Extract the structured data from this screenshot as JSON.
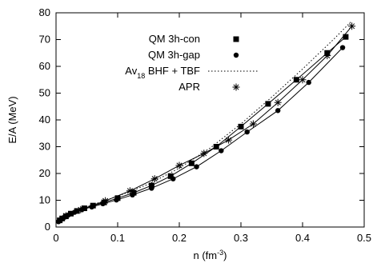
{
  "chart_data": {
    "type": "line",
    "title": "",
    "xlabel": "n (fm",
    "xlabel_sup": "-3",
    "xlabel_end": ")",
    "ylabel": "E/A (MeV)",
    "xlim": [
      0,
      0.5
    ],
    "ylim": [
      0,
      80
    ],
    "xticks": [
      0,
      0.1,
      0.2,
      0.3,
      0.4,
      0.5
    ],
    "xtick_labels": [
      "0",
      "0.1",
      "0.2",
      "0.3",
      "0.4",
      "0.5"
    ],
    "yticks": [
      0,
      10,
      20,
      30,
      40,
      50,
      60,
      70,
      80
    ],
    "ytick_labels": [
      "0",
      "10",
      "20",
      "30",
      "40",
      "50",
      "60",
      "70",
      "80"
    ],
    "grid": false,
    "legend_position": "top-left",
    "series": [
      {
        "name": "QM 3h-con",
        "marker": "square",
        "line": "solid",
        "x": [
          0.006,
          0.01,
          0.016,
          0.024,
          0.034,
          0.046,
          0.06,
          0.078,
          0.1,
          0.126,
          0.155,
          0.186,
          0.22,
          0.26,
          0.3,
          0.344,
          0.39,
          0.44,
          0.47
        ],
        "y": [
          2.5,
          3.2,
          4.0,
          5.0,
          6.0,
          7.0,
          8.0,
          9.2,
          10.8,
          12.8,
          15.5,
          19.0,
          23.8,
          30.0,
          37.5,
          46.0,
          55.0,
          65.0,
          71.0
        ]
      },
      {
        "name": "QM 3h-gap",
        "marker": "circle",
        "line": "solid",
        "x": [
          0.004,
          0.008,
          0.013,
          0.02,
          0.03,
          0.042,
          0.058,
          0.076,
          0.098,
          0.124,
          0.155,
          0.19,
          0.228,
          0.268,
          0.31,
          0.36,
          0.41,
          0.465
        ],
        "y": [
          2.0,
          2.8,
          3.6,
          4.5,
          5.5,
          6.5,
          7.5,
          8.7,
          10.1,
          12.0,
          14.5,
          18.0,
          22.5,
          28.5,
          35.5,
          43.5,
          54.0,
          67.0
        ]
      },
      {
        "name": "Av",
        "name_sub": "18",
        "name_end": " BHF + TBF",
        "marker": "none",
        "line": "dotted",
        "x": [
          0.01,
          0.03,
          0.06,
          0.1,
          0.15,
          0.2,
          0.25,
          0.3,
          0.35,
          0.4,
          0.45,
          0.48
        ],
        "y": [
          3.3,
          5.8,
          8.4,
          11.5,
          16.0,
          22.0,
          29.5,
          38.5,
          48.5,
          59.0,
          70.0,
          77.0
        ]
      },
      {
        "name": "APR",
        "marker": "asterisk",
        "line": "solid",
        "x": [
          0.016,
          0.04,
          0.08,
          0.12,
          0.16,
          0.2,
          0.24,
          0.28,
          0.32,
          0.36,
          0.4,
          0.44,
          0.48
        ],
        "y": [
          4.2,
          6.5,
          9.8,
          13.5,
          18.0,
          23.0,
          27.5,
          32.5,
          38.5,
          46.5,
          55.0,
          64.0,
          75.0
        ]
      }
    ]
  }
}
